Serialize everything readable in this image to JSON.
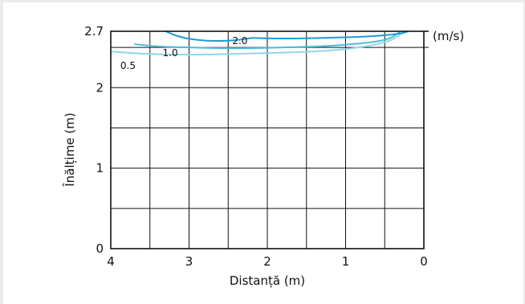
{
  "chart_data": {
    "type": "line",
    "title": "",
    "xlabel": "Distanță (m)",
    "ylabel": "Înălțime (m)",
    "unit_label": "(m/s)",
    "xlim": [
      4,
      0
    ],
    "ylim": [
      0,
      2.7
    ],
    "x_ticks": [
      {
        "value": 4,
        "label": "4"
      },
      {
        "value": 3,
        "label": "3"
      },
      {
        "value": 2,
        "label": "2"
      },
      {
        "value": 1,
        "label": "1"
      },
      {
        "value": 0,
        "label": "0"
      }
    ],
    "y_ticks": [
      {
        "value": 0,
        "label": "0"
      },
      {
        "value": 1,
        "label": "1"
      },
      {
        "value": 2,
        "label": "2"
      },
      {
        "value": 2.7,
        "label": "2.7"
      }
    ],
    "grid": true,
    "series": [
      {
        "name": "0.5",
        "color": "#8fd6e8",
        "x": [
          4.0,
          3.6,
          3.2,
          2.8,
          2.4,
          2.0,
          1.6,
          1.2,
          0.8,
          0.5,
          0.35,
          0.25
        ],
        "y": [
          2.45,
          2.42,
          2.41,
          2.41,
          2.42,
          2.43,
          2.44,
          2.46,
          2.5,
          2.56,
          2.62,
          2.7
        ],
        "label_at": [
          3.78,
          2.27
        ]
      },
      {
        "name": "1.0",
        "color": "#4fb8dc",
        "x": [
          3.7,
          3.4,
          3.0,
          2.6,
          2.2,
          1.8,
          1.4,
          1.0,
          0.6,
          0.4,
          0.3
        ],
        "y": [
          2.54,
          2.51,
          2.5,
          2.49,
          2.49,
          2.5,
          2.51,
          2.53,
          2.57,
          2.62,
          2.7
        ],
        "label_at": [
          3.24,
          2.43
        ]
      },
      {
        "name": "2.0",
        "color": "#1e9cd6",
        "x": [
          3.3,
          3.1,
          2.8,
          2.5,
          2.3,
          2.2,
          2.0,
          1.6,
          1.2,
          0.8,
          0.5,
          0.3,
          0.2
        ],
        "y": [
          2.7,
          2.62,
          2.58,
          2.58,
          2.6,
          2.62,
          2.61,
          2.61,
          2.62,
          2.63,
          2.65,
          2.67,
          2.7
        ],
        "label_at": [
          2.35,
          2.58
        ]
      }
    ]
  }
}
